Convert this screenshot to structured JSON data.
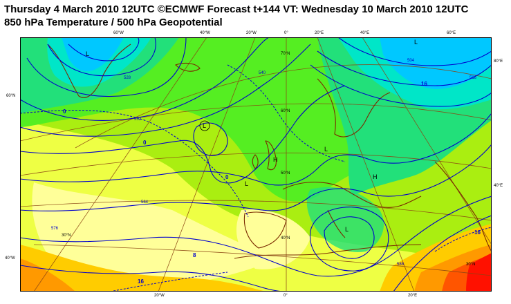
{
  "title": {
    "line1": "Thursday 4 March 2010 12UTC ©ECMWF Forecast t+144 VT: Wednesday 10 March 2010 12UTC",
    "line2": "850 hPa Temperature / 500 hPa Geopotential"
  },
  "top_lon_labels": [
    "60°W",
    "40°W",
    "20°W",
    "0°",
    "20°E",
    "40°E",
    "60°E"
  ],
  "bottom_lon_labels": [
    "20°W",
    "0°",
    "20°E"
  ],
  "left_lat_labels": [
    "60°N",
    "40°W"
  ],
  "right_lat_labels": [
    "80°E",
    "40°E"
  ],
  "inner_lat_labels": [
    "70°N",
    "60°N",
    "50°N",
    "40°N",
    "30°N"
  ],
  "contour_labels": [
    "528",
    "540",
    "552",
    "564",
    "576",
    "588",
    "516",
    "504"
  ],
  "temperature_labels": [
    "0",
    "16",
    "8"
  ],
  "pressure_centers": [
    "L",
    "H"
  ],
  "colors": {
    "frame": "#000000",
    "deep_cold": "#00c8ff",
    "cold": "#00e6c8",
    "cool_green": "#22e07a",
    "green": "#55ee22",
    "lime": "#aaee11",
    "yellow": "#eeff44",
    "pale_yellow": "#ffff99",
    "orange": "#ffcc00",
    "dark_orange": "#ff9900",
    "red_orange": "#ff5500",
    "red": "#ff1100",
    "isohypse": "#0000cc",
    "coast": "#7a2a00",
    "graticule": "#8b4513"
  }
}
